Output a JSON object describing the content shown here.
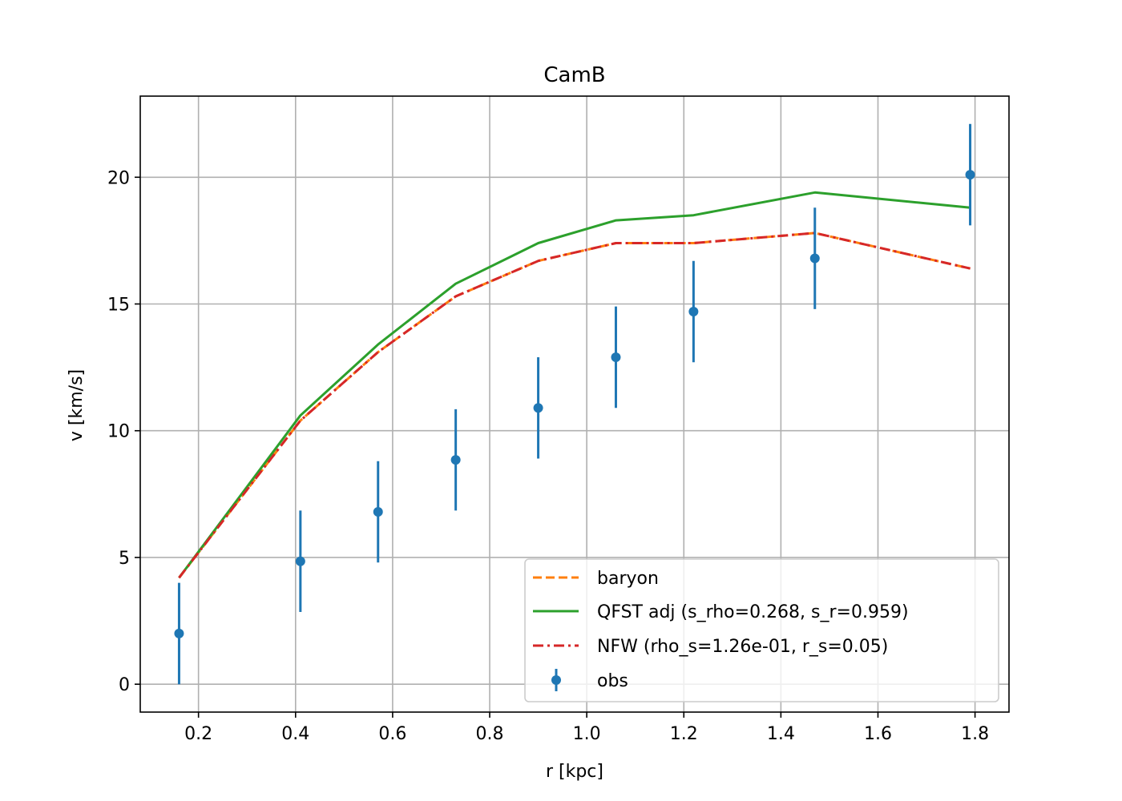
{
  "chart_data": {
    "type": "line",
    "title": "CamB",
    "xlabel": "r [kpc]",
    "ylabel": "v [km/s]",
    "xlim": [
      0.08,
      1.87
    ],
    "ylim": [
      -1.1,
      23.2
    ],
    "grid": true,
    "legend_position": "lower-right",
    "xticks": [
      0.2,
      0.4,
      0.6,
      0.8,
      1.0,
      1.2,
      1.4,
      1.6,
      1.8
    ],
    "xtick_labels": [
      "0.2",
      "0.4",
      "0.6",
      "0.8",
      "1.0",
      "1.2",
      "1.4",
      "1.6",
      "1.8"
    ],
    "yticks": [
      0,
      5,
      10,
      15,
      20
    ],
    "ytick_labels": [
      "0",
      "5",
      "10",
      "15",
      "20"
    ],
    "x": [
      0.16,
      0.41,
      0.57,
      0.73,
      0.9,
      1.06,
      1.22,
      1.47,
      1.79
    ],
    "series": [
      {
        "name": "baryon",
        "style": "dashed",
        "color": "#ff7f0e",
        "values": [
          4.2,
          10.4,
          13.1,
          15.3,
          16.7,
          17.4,
          17.4,
          17.8,
          16.4
        ]
      },
      {
        "name": "QFST adj (s_rho=0.268, s_r=0.959)",
        "style": "solid",
        "color": "#2ca02c",
        "values": [
          4.2,
          10.6,
          13.4,
          15.8,
          17.4,
          18.3,
          18.5,
          19.4,
          18.8
        ]
      },
      {
        "name": "NFW (rho_s=1.26e-01, r_s=0.05)",
        "style": "dashdot",
        "color": "#d62728",
        "values": [
          4.2,
          10.4,
          13.1,
          15.3,
          16.7,
          17.4,
          17.4,
          17.8,
          16.4
        ]
      }
    ],
    "observations": {
      "name": "obs",
      "color": "#1f77b4",
      "values": [
        2.0,
        4.85,
        6.8,
        8.85,
        10.9,
        12.9,
        14.7,
        16.8,
        20.1
      ],
      "errors": [
        2.0,
        2.0,
        2.0,
        2.0,
        2.0,
        2.0,
        2.0,
        2.0,
        2.0
      ]
    }
  }
}
